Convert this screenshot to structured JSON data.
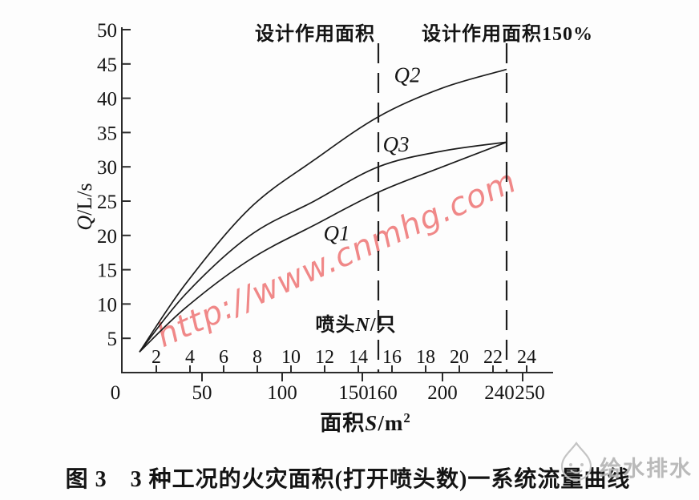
{
  "figure": {
    "caption": "图 3　3 种工况的火灾面积(打开喷头数)一系统流量曲线",
    "watermark": "http://www.cnmhg.com",
    "logo_text": "给水排水"
  },
  "chart_data": {
    "type": "line",
    "title": "图 3　3 种工况的火灾面积(打开喷头数)一系统流量曲线",
    "ylabel_var": "Q",
    "ylabel_unit": "/L/s",
    "ylim": [
      0,
      50
    ],
    "y_ticks": [
      5,
      10,
      15,
      20,
      25,
      30,
      35,
      40,
      45,
      50
    ],
    "xlabel_prefix": "面积",
    "xlabel_var": "S",
    "xlabel_unit": "/m",
    "xlabel_sup": "2",
    "xlim": [
      0,
      250
    ],
    "s_ticks_major": [
      50,
      100,
      150,
      200,
      250
    ],
    "s_tick_labels": [
      0,
      50,
      100,
      150,
      160,
      200,
      240,
      250
    ],
    "n_axis_prefix": "喷头",
    "n_axis_var": "N",
    "n_axis_unit": "/只",
    "n_ticks": [
      2,
      4,
      6,
      8,
      10,
      12,
      14,
      16,
      18,
      20,
      22,
      24
    ],
    "annotations": [
      {
        "label": "设计作用面积",
        "s": 160
      },
      {
        "label": "设计作用面积150%",
        "s": 240
      }
    ],
    "series": [
      {
        "name": "Q2",
        "points": [
          [
            11,
            3
          ],
          [
            40,
            13
          ],
          [
            80,
            24
          ],
          [
            120,
            31
          ],
          [
            160,
            37.3
          ],
          [
            200,
            41.5
          ],
          [
            240,
            44.2
          ]
        ],
        "label_at": [
          178,
          43.4
        ]
      },
      {
        "name": "Q3",
        "points": [
          [
            11,
            3
          ],
          [
            40,
            11.5
          ],
          [
            80,
            20
          ],
          [
            120,
            25
          ],
          [
            160,
            30
          ],
          [
            200,
            32.3
          ],
          [
            240,
            33.6
          ]
        ],
        "label_at": [
          171,
          33.3
        ]
      },
      {
        "name": "Q1",
        "points": [
          [
            11,
            3
          ],
          [
            40,
            9.5
          ],
          [
            80,
            16.5
          ],
          [
            120,
            21.5
          ],
          [
            160,
            26.3
          ],
          [
            200,
            30
          ],
          [
            240,
            33.6
          ]
        ],
        "label_at": [
          134,
          20.3
        ]
      }
    ],
    "colors": {
      "curve": "#1c1c1c",
      "axis": "#2b2b2b",
      "watermark": "#ee6f6f",
      "logo": "#b3b3b3",
      "text": "#141414"
    }
  }
}
